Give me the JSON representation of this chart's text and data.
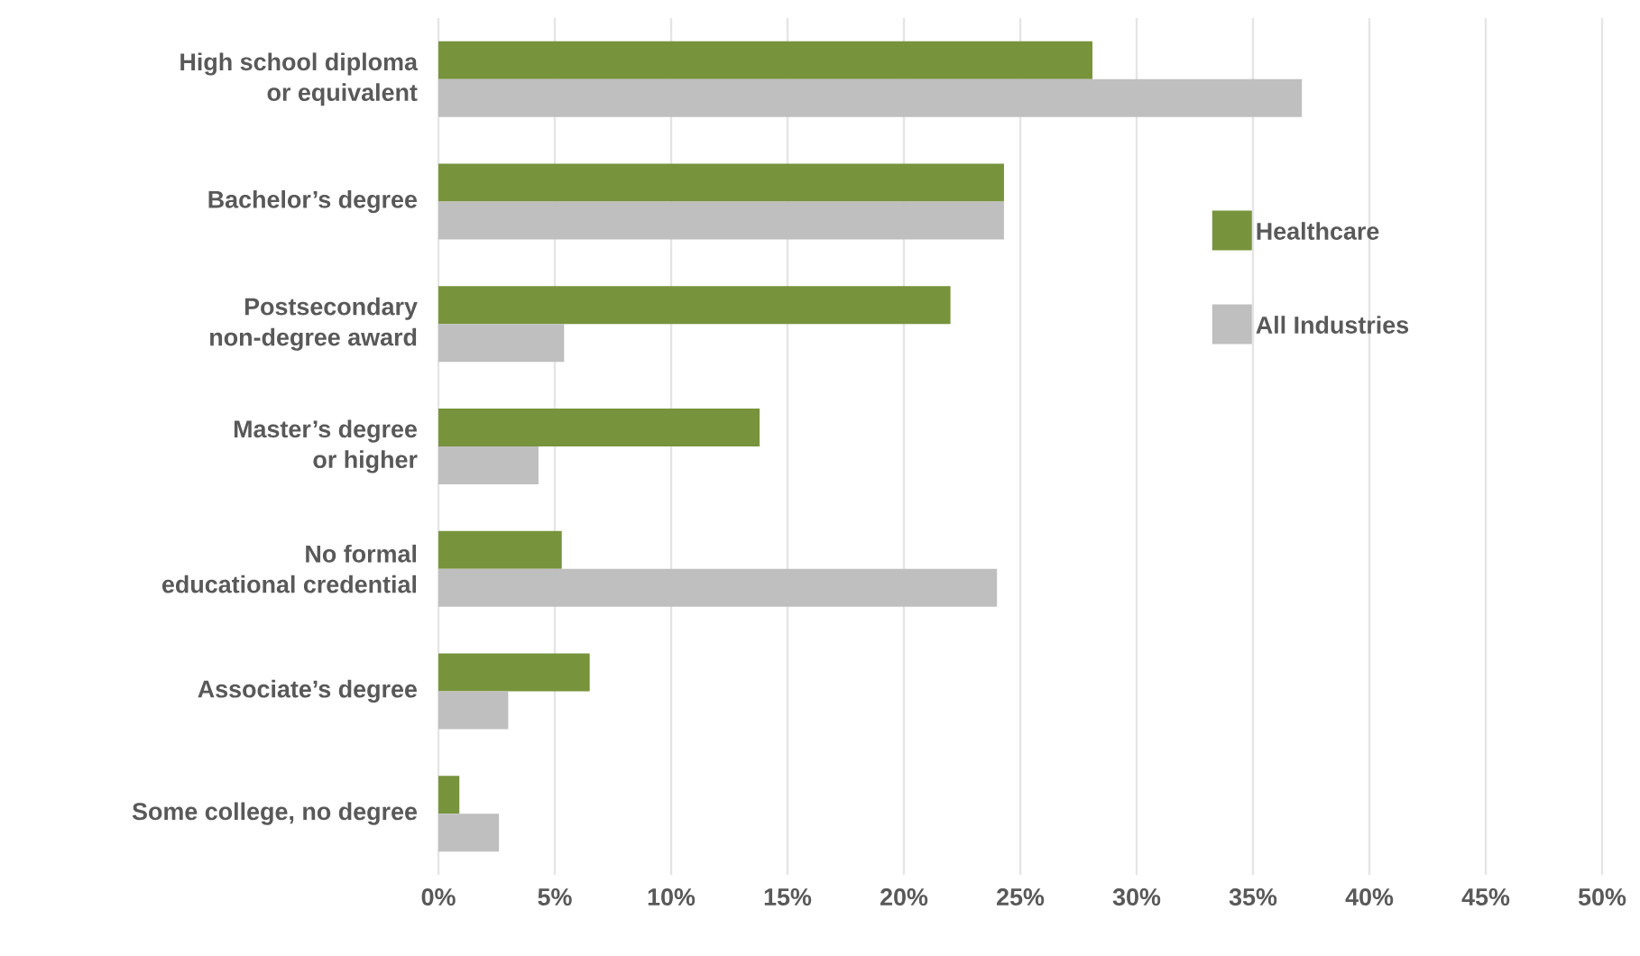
{
  "chart_data": {
    "type": "bar",
    "orientation": "horizontal",
    "categories": [
      "High school diploma\nor equivalent",
      "Bachelor’s degree",
      "Postsecondary\nnon-degree award",
      "Master’s degree\nor higher",
      "No formal\neducational credential",
      "Associate’s degree",
      "Some college, no degree"
    ],
    "series": [
      {
        "name": "Healthcare",
        "color": "#77933c",
        "values": [
          28.1,
          24.3,
          22.0,
          13.8,
          5.3,
          6.5,
          0.9
        ]
      },
      {
        "name": "All Industries",
        "color": "#bfbfbf",
        "values": [
          37.1,
          24.3,
          5.4,
          4.3,
          24.0,
          3.0,
          2.6
        ]
      }
    ],
    "xlim": [
      0,
      50
    ],
    "xticks": [
      {
        "value": 0,
        "label": "0%"
      },
      {
        "value": 5,
        "label": "5%"
      },
      {
        "value": 10,
        "label": "10%"
      },
      {
        "value": 15,
        "label": "15%"
      },
      {
        "value": 20,
        "label": "20%"
      },
      {
        "value": 25,
        "label": "25%"
      },
      {
        "value": 30,
        "label": "30%"
      },
      {
        "value": 35,
        "label": "35%"
      },
      {
        "value": 40,
        "label": "40%"
      },
      {
        "value": 45,
        "label": "45%"
      },
      {
        "value": 50,
        "label": "50%"
      }
    ],
    "grid": "x",
    "legend": "right"
  }
}
